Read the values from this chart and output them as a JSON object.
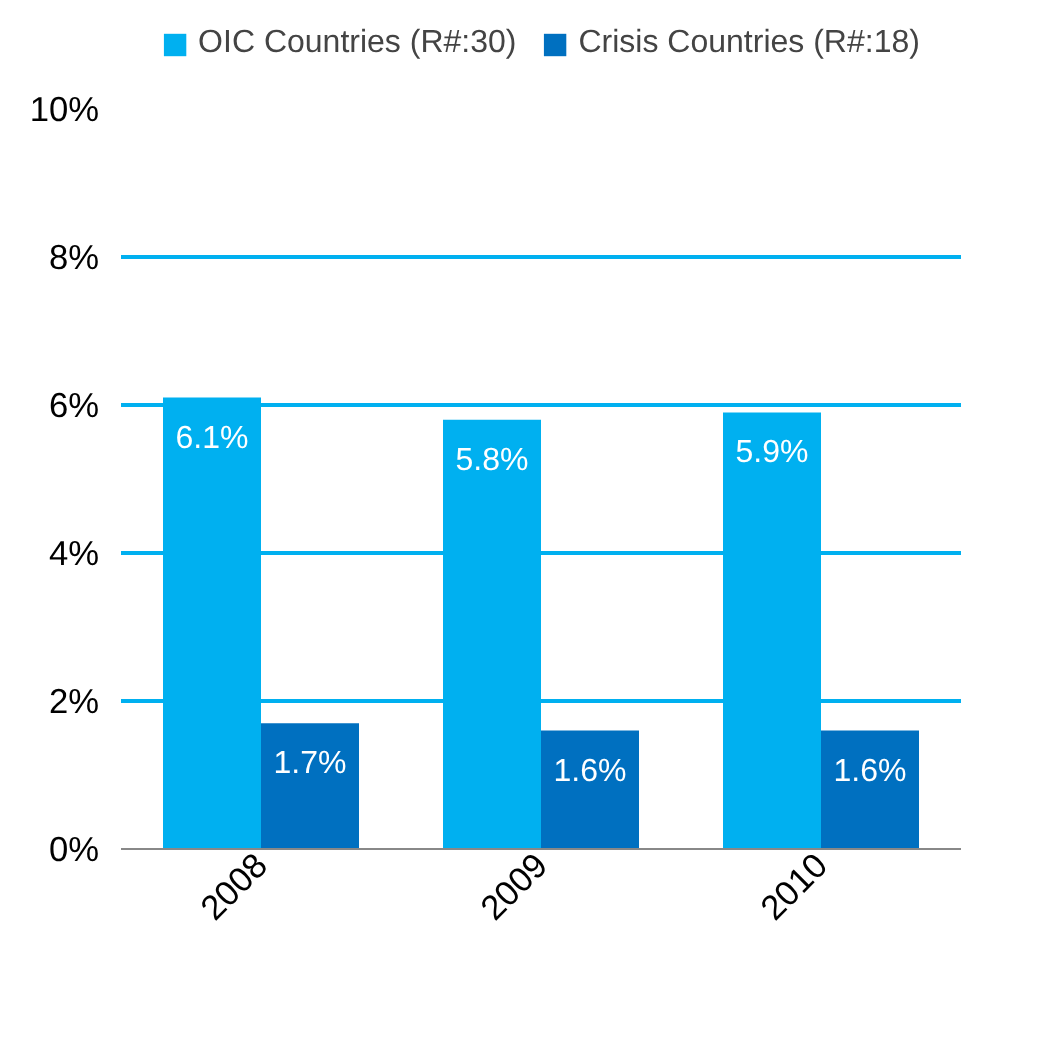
{
  "chart_data": {
    "type": "bar",
    "categories": [
      "2008",
      "2009",
      "2010"
    ],
    "series": [
      {
        "name": "OIC Countries (R#:30)",
        "color": "#00b0f0",
        "values": [
          6.1,
          5.8,
          5.9
        ],
        "value_labels": [
          "6.1%",
          "5.8%",
          "5.9%"
        ]
      },
      {
        "name": "Crisis Countries (R#:18)",
        "color": "#0070c0",
        "values": [
          1.7,
          1.6,
          1.6
        ],
        "value_labels": [
          "1.7%",
          "1.6%",
          "1.6%"
        ]
      }
    ],
    "ylim": [
      0,
      10
    ],
    "yticks": [
      {
        "value": 0,
        "label": "0%"
      },
      {
        "value": 2,
        "label": "2%"
      },
      {
        "value": 4,
        "label": "4%"
      },
      {
        "value": 6,
        "label": "6%"
      },
      {
        "value": 8,
        "label": "8%"
      },
      {
        "value": 10,
        "label": "10%"
      }
    ],
    "grid": "y",
    "legend": "top"
  }
}
